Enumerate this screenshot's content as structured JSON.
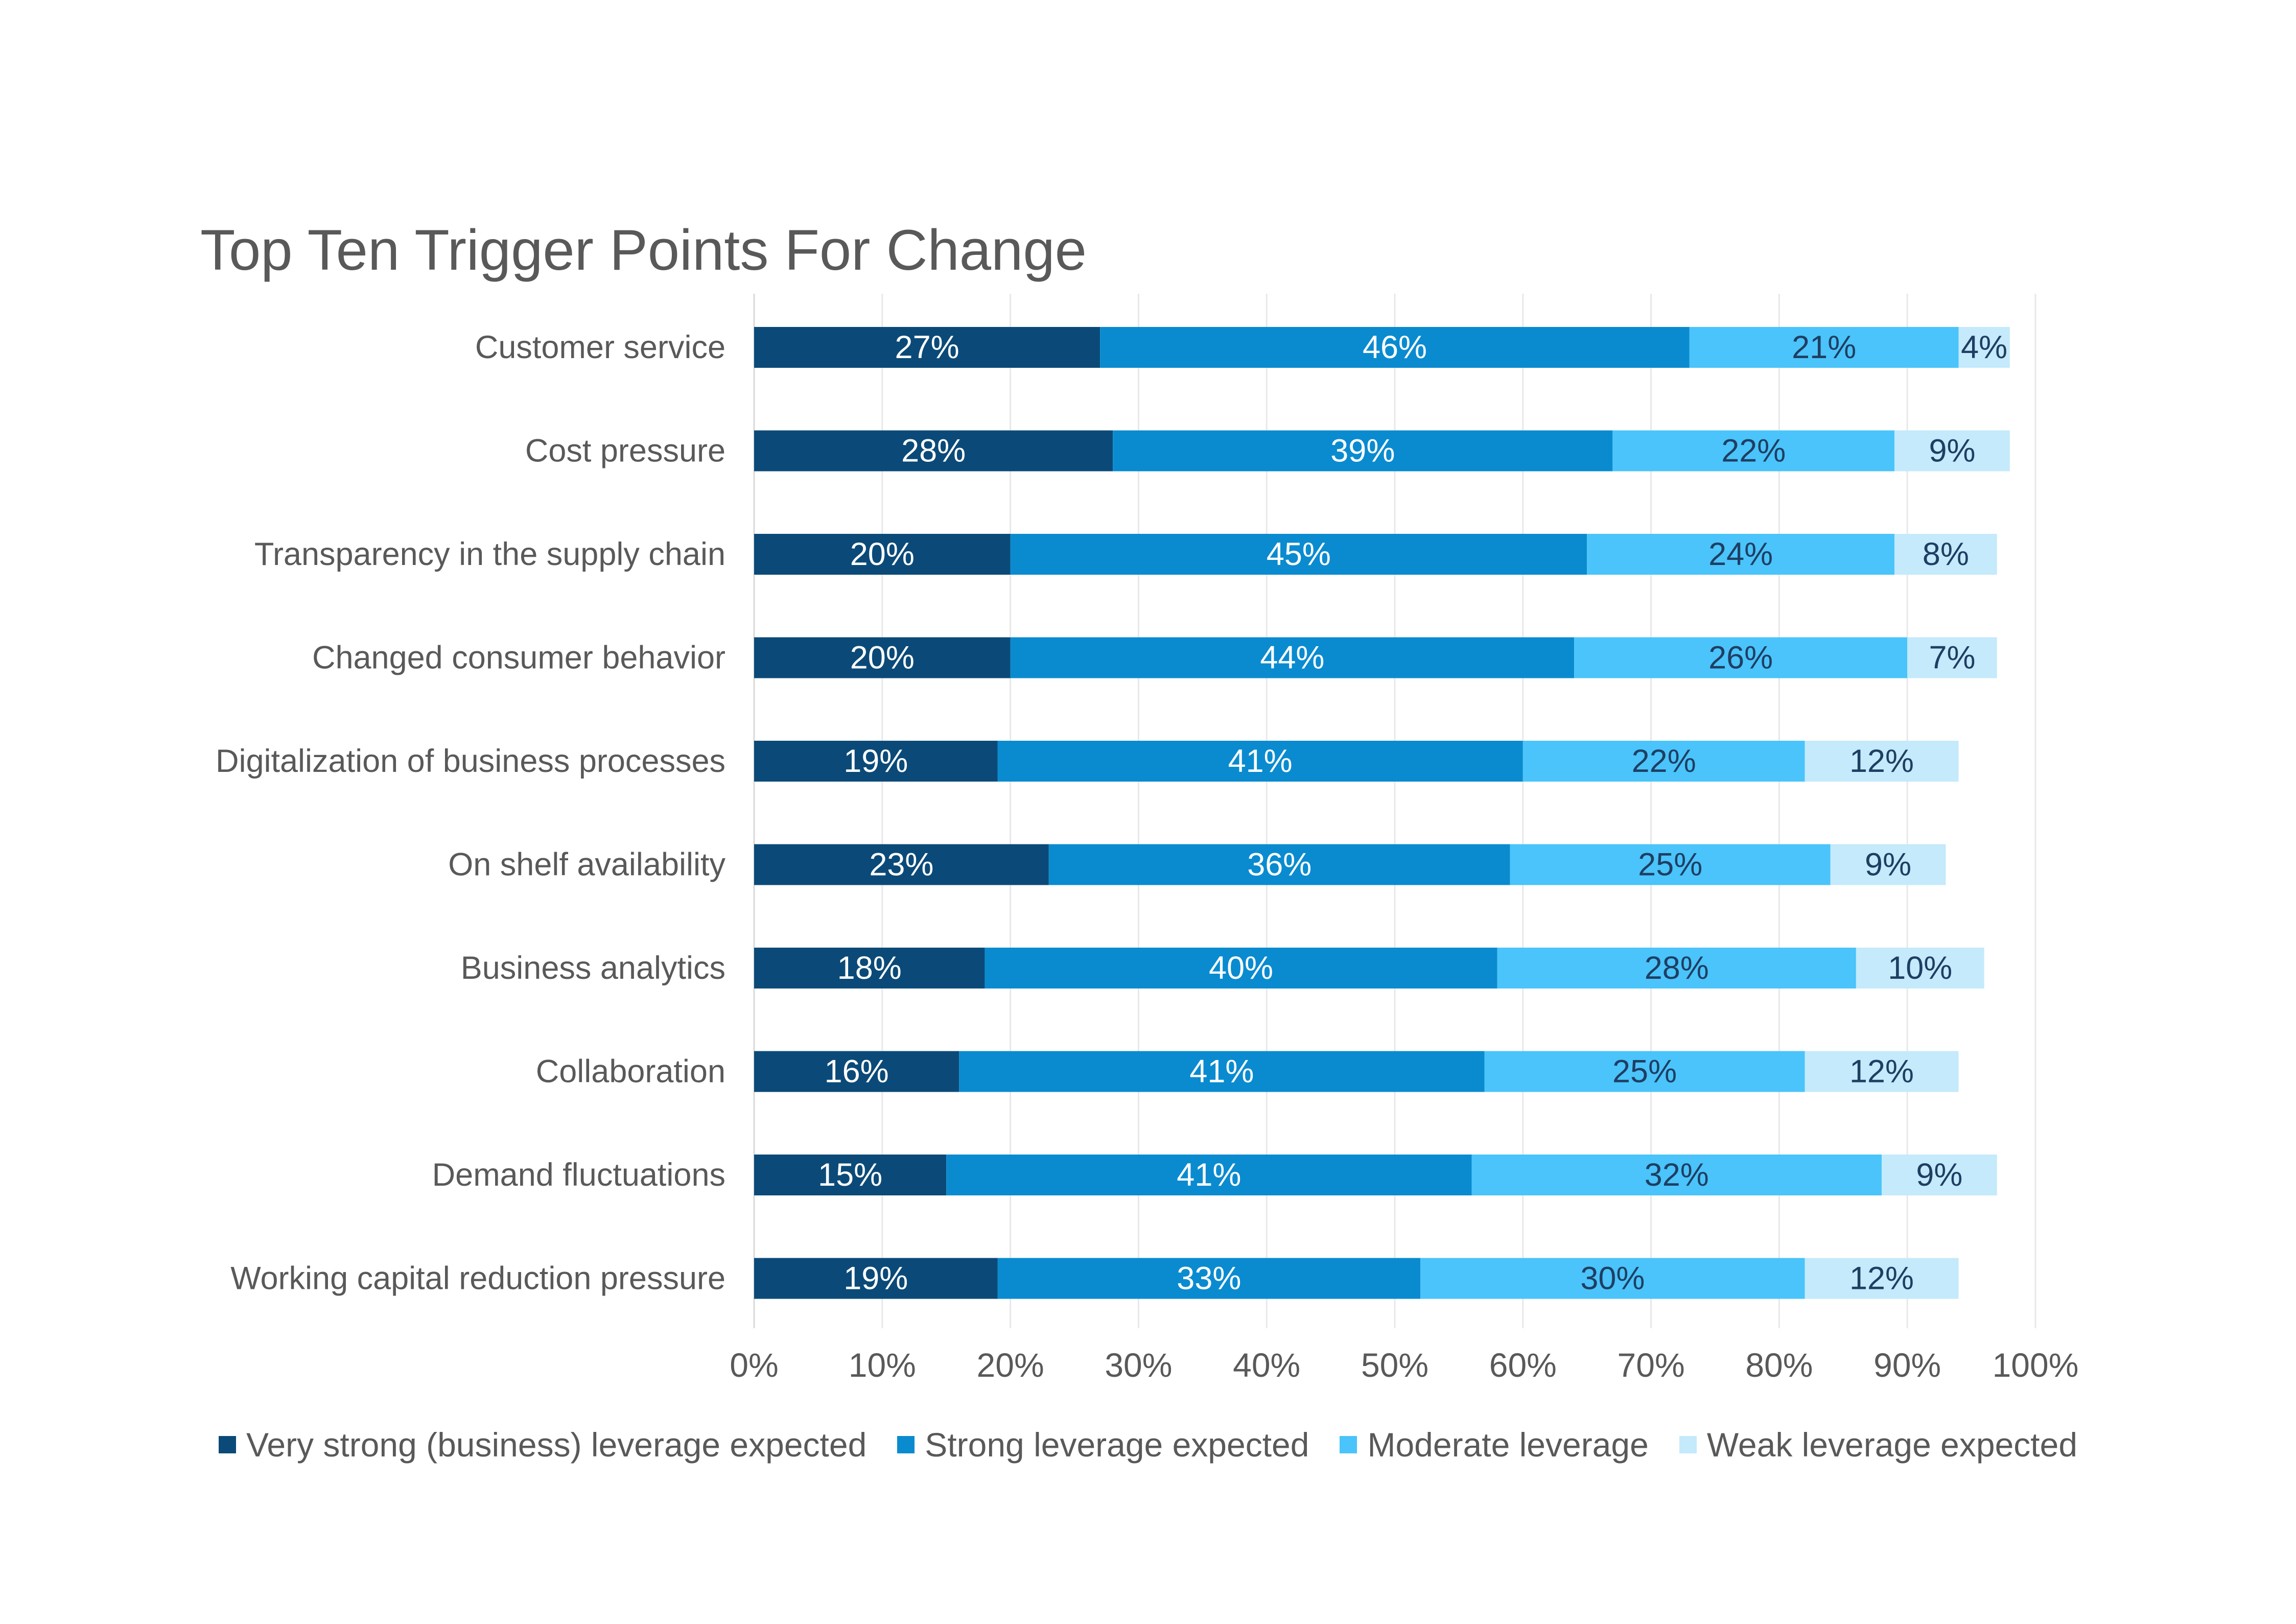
{
  "chart_data": {
    "type": "bar",
    "orientation": "horizontal",
    "stacked": true,
    "title": "Top Ten Trigger Points For Change",
    "categories": [
      "Customer service",
      "Cost pressure",
      "Transparency in the supply chain",
      "Changed consumer behavior",
      "Digitalization of business processes",
      "On shelf availability",
      "Business analytics",
      "Collaboration",
      "Demand fluctuations",
      "Working capital reduction pressure"
    ],
    "series": [
      {
        "name": "Very strong (business) leverage expected",
        "color": "#0b4a78",
        "label_color": "#ffffff",
        "values": [
          27,
          28,
          20,
          20,
          19,
          23,
          18,
          16,
          15,
          19
        ]
      },
      {
        "name": "Strong leverage expected",
        "color": "#0a8bd0",
        "label_color": "#ffffff",
        "values": [
          46,
          39,
          45,
          44,
          41,
          36,
          40,
          41,
          41,
          33
        ]
      },
      {
        "name": "Moderate leverage",
        "color": "#4ac4fa",
        "label_color": "#1f3e63",
        "values": [
          21,
          22,
          24,
          26,
          22,
          25,
          28,
          25,
          32,
          30
        ]
      },
      {
        "name": "Weak leverage expected",
        "color": "#c4eafb",
        "label_color": "#1f3e63",
        "values": [
          4,
          9,
          8,
          7,
          12,
          9,
          10,
          12,
          9,
          12
        ]
      }
    ],
    "xlim": [
      0,
      100
    ],
    "x_ticks": [
      "0%",
      "10%",
      "20%",
      "30%",
      "40%",
      "50%",
      "60%",
      "70%",
      "80%",
      "90%",
      "100%"
    ],
    "value_suffix": "%",
    "grid": "vertical",
    "legend_position": "bottom"
  }
}
